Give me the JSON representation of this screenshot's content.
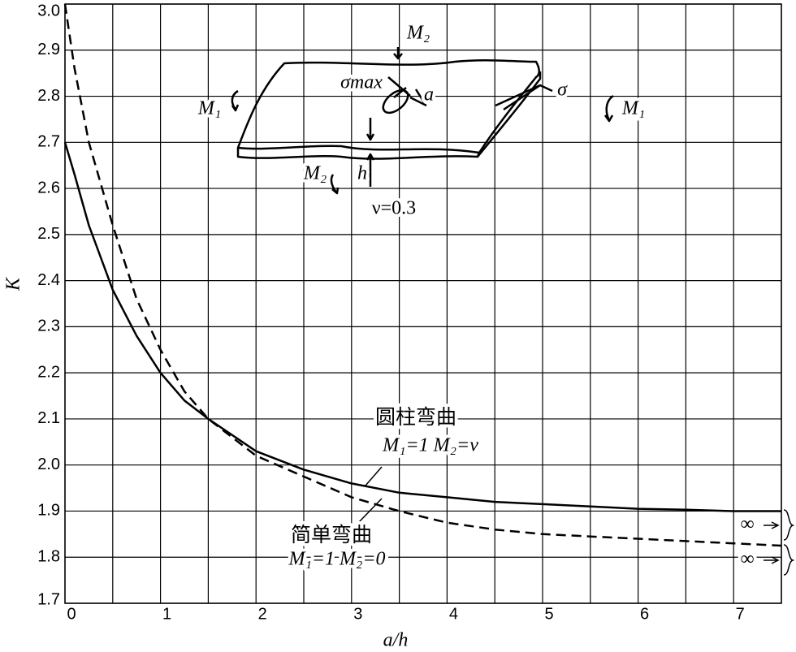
{
  "chart_data": {
    "type": "line",
    "x_label": "a/h",
    "y_label": "K",
    "xlim": [
      0,
      7.5
    ],
    "ylim": [
      1.7,
      3.0
    ],
    "xticks": [
      0,
      1,
      2,
      3,
      4,
      5,
      6,
      7
    ],
    "xgridlines": [
      0,
      0.5,
      1,
      1.5,
      2,
      2.5,
      3,
      3.5,
      4,
      4.5,
      5,
      5.5,
      6,
      6.5,
      7,
      7.5
    ],
    "yticks": [
      1.7,
      1.8,
      1.9,
      {
        "value": 2.0,
        "label": "2.0"
      },
      2.1,
      2.2,
      2.3,
      2.4,
      2.5,
      2.6,
      2.7,
      2.8,
      2.9,
      {
        "value": 3.0,
        "label": "3.0"
      }
    ],
    "grid": true,
    "x": [
      0,
      0.1,
      0.25,
      0.5,
      0.75,
      1,
      1.25,
      1.5,
      2,
      2.5,
      3,
      3.5,
      4,
      4.5,
      5,
      5.5,
      6,
      6.5,
      7,
      7.5
    ],
    "series": [
      {
        "name": "圆柱弯曲",
        "color": "#000000",
        "dash": false,
        "values": [
          2.7,
          2.63,
          2.52,
          2.38,
          2.28,
          2.2,
          2.14,
          2.1,
          2.03,
          1.99,
          1.96,
          1.94,
          1.93,
          1.92,
          1.915,
          1.91,
          1.905,
          1.903,
          1.9,
          1.9
        ]
      },
      {
        "name": "简单弯曲",
        "color": "#000000",
        "dash": true,
        "values": [
          3.0,
          2.86,
          2.7,
          2.52,
          2.36,
          2.25,
          2.16,
          2.1,
          2.02,
          1.975,
          1.93,
          1.9,
          1.875,
          1.86,
          1.85,
          1.845,
          1.84,
          1.835,
          1.83,
          1.825
        ]
      }
    ],
    "annotations": [
      "M₁=1   M₂=ν",
      "M₁=1  M₂=0",
      "ν=0.3",
      "∞",
      "∞"
    ],
    "inset_labels": [
      "M₂",
      "σmax",
      "a",
      "σ",
      "M₁",
      "M₁",
      "M₂",
      "h"
    ]
  }
}
